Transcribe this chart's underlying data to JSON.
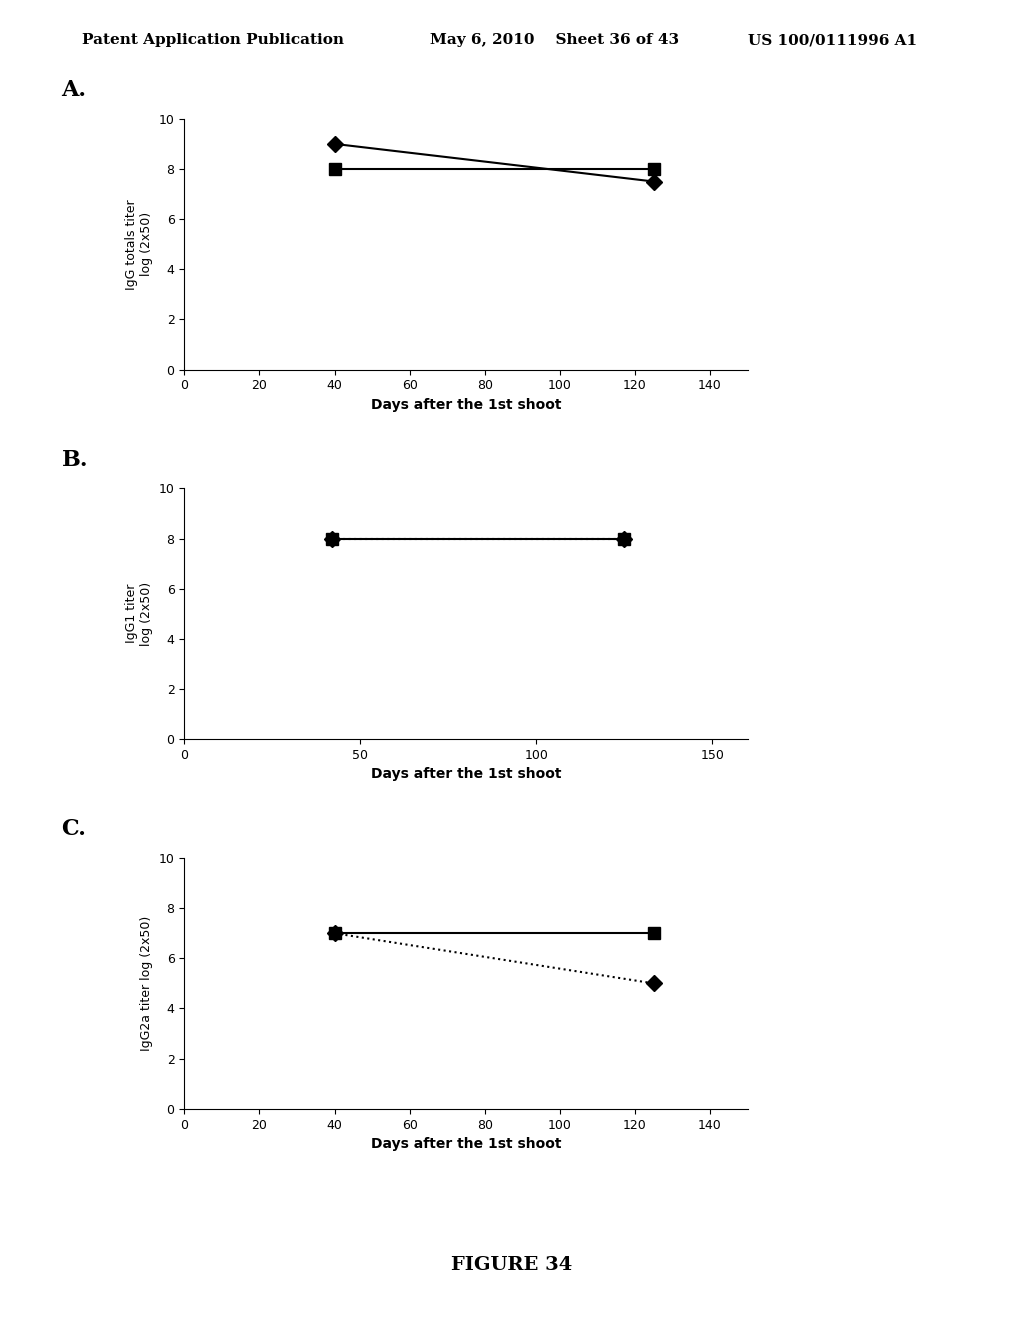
{
  "header_left": "Patent Application Publication",
  "header_mid": "May 6, 2010   Sheet 36 of 43",
  "header_right": "US 100/0111996 A1",
  "figure_label": "FIGURE 34",
  "panel_A": {
    "label": "A.",
    "series": [
      {
        "x": [
          40,
          125
        ],
        "y": [
          9,
          7.5
        ],
        "marker": "D",
        "linestyle": "-",
        "color": "#000000",
        "markersize": 8,
        "linewidth": 1.5
      },
      {
        "x": [
          40,
          125
        ],
        "y": [
          8,
          8
        ],
        "marker": "s",
        "linestyle": "-",
        "color": "#000000",
        "markersize": 8,
        "linewidth": 1.5
      }
    ],
    "xlabel": "Days after the 1st shoot",
    "ylabel": "IgG totals titer\nlog (2x50)",
    "xlim": [
      0,
      150
    ],
    "ylim": [
      0,
      10
    ],
    "xticks": [
      0,
      20,
      40,
      60,
      80,
      100,
      120,
      140
    ],
    "yticks": [
      0,
      2,
      4,
      6,
      8,
      10
    ]
  },
  "panel_B": {
    "label": "B.",
    "series": [
      {
        "x": [
          42,
          125
        ],
        "y": [
          8,
          8
        ],
        "marker": "D",
        "linestyle": ":",
        "color": "#000000",
        "markersize": 8,
        "linewidth": 1.5
      },
      {
        "x": [
          42,
          125
        ],
        "y": [
          8,
          8
        ],
        "marker": "s",
        "linestyle": "-",
        "color": "#000000",
        "markersize": 8,
        "linewidth": 1.5
      }
    ],
    "xlabel": "Days after the 1st shoot",
    "ylabel": "IgG1 titer\nlog (2x50)",
    "xlim": [
      0,
      160
    ],
    "ylim": [
      0,
      10
    ],
    "xticks": [
      0,
      50,
      100,
      150
    ],
    "yticks": [
      0,
      2,
      4,
      6,
      8,
      10
    ]
  },
  "panel_C": {
    "label": "C.",
    "series": [
      {
        "x": [
          40,
          125
        ],
        "y": [
          7,
          5
        ],
        "marker": "D",
        "linestyle": ":",
        "color": "#000000",
        "markersize": 8,
        "linewidth": 1.5
      },
      {
        "x": [
          40,
          125
        ],
        "y": [
          7,
          7
        ],
        "marker": "s",
        "linestyle": "-",
        "color": "#000000",
        "markersize": 8,
        "linewidth": 1.5
      }
    ],
    "xlabel": "Days after the 1st shoot",
    "ylabel": "IgG2a titer log (2x50)",
    "xlim": [
      0,
      150
    ],
    "ylim": [
      0,
      10
    ],
    "xticks": [
      0,
      20,
      40,
      60,
      80,
      100,
      120,
      140
    ],
    "yticks": [
      0,
      2,
      4,
      6,
      8,
      10
    ]
  }
}
